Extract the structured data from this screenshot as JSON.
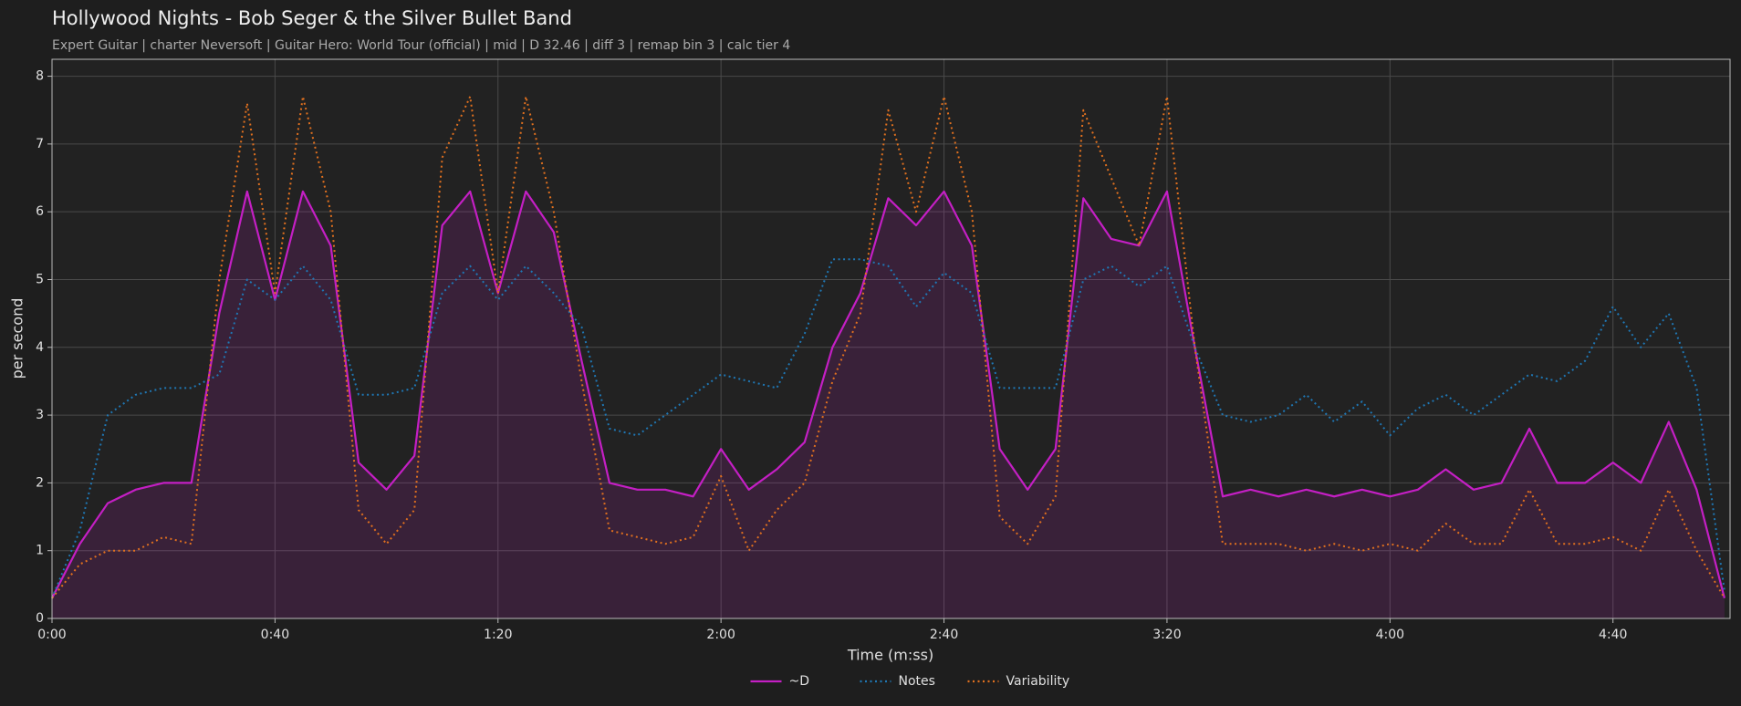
{
  "chart_data": {
    "type": "line",
    "title": "Hollywood Nights - Bob Seger & the Silver Bullet Band",
    "subtitle": "Expert Guitar  |  charter Neversoft  |  Guitar Hero: World Tour (official)  |  mid  |  D 32.46  |  diff 3  |  remap bin 3  |  calc tier 4",
    "xlabel": "Time (m:ss)",
    "ylabel": "per second",
    "x": [
      0,
      5,
      10,
      15,
      20,
      25,
      30,
      35,
      40,
      45,
      50,
      55,
      60,
      65,
      70,
      75,
      80,
      85,
      90,
      95,
      100,
      105,
      110,
      115,
      120,
      125,
      130,
      135,
      140,
      145,
      150,
      155,
      160,
      165,
      170,
      175,
      180,
      185,
      190,
      195,
      200,
      205,
      210,
      215,
      220,
      225,
      230,
      235,
      240,
      245,
      250,
      255,
      260,
      265,
      270,
      275,
      280,
      285,
      290,
      295,
      300
    ],
    "series": [
      {
        "name": "~D",
        "color": "#c41fc4",
        "dash": "solid",
        "fill": true,
        "values": [
          0.3,
          1.1,
          1.7,
          1.9,
          2.0,
          2.0,
          4.5,
          6.3,
          4.7,
          6.3,
          5.5,
          2.3,
          1.9,
          2.4,
          5.8,
          6.3,
          4.8,
          6.3,
          5.7,
          3.8,
          2.0,
          1.9,
          1.9,
          1.8,
          2.5,
          1.9,
          2.2,
          2.6,
          4.0,
          4.8,
          6.2,
          5.8,
          6.3,
          5.5,
          2.5,
          1.9,
          2.5,
          6.2,
          5.6,
          5.5,
          6.3,
          4.0,
          1.8,
          1.9,
          1.8,
          1.9,
          1.8,
          1.9,
          1.8,
          1.9,
          2.2,
          1.9,
          2.0,
          2.8,
          2.0,
          2.0,
          2.3,
          2.0,
          2.9,
          1.9,
          0.3
        ]
      },
      {
        "name": "Notes",
        "color": "#1f77b4",
        "dash": "dotted",
        "fill": false,
        "values": [
          0.3,
          1.3,
          3.0,
          3.3,
          3.4,
          3.4,
          3.6,
          5.0,
          4.7,
          5.2,
          4.7,
          3.3,
          3.3,
          3.4,
          4.8,
          5.2,
          4.7,
          5.2,
          4.8,
          4.3,
          2.8,
          2.7,
          3.0,
          3.3,
          3.6,
          3.5,
          3.4,
          4.2,
          5.3,
          5.3,
          5.2,
          4.6,
          5.1,
          4.8,
          3.4,
          3.4,
          3.4,
          5.0,
          5.2,
          4.9,
          5.2,
          4.0,
          3.0,
          2.9,
          3.0,
          3.3,
          2.9,
          3.2,
          2.7,
          3.1,
          3.3,
          3.0,
          3.3,
          3.6,
          3.5,
          3.8,
          4.6,
          4.0,
          4.5,
          3.4,
          0.4
        ]
      },
      {
        "name": "Variability",
        "color": "#e0701f",
        "dash": "dotted",
        "fill": false,
        "values": [
          0.3,
          0.8,
          1.0,
          1.0,
          1.2,
          1.1,
          5.0,
          7.6,
          4.8,
          7.7,
          6.0,
          1.6,
          1.1,
          1.6,
          6.8,
          7.7,
          4.8,
          7.7,
          6.0,
          3.5,
          1.3,
          1.2,
          1.1,
          1.2,
          2.1,
          1.0,
          1.6,
          2.0,
          3.5,
          4.5,
          7.5,
          6.0,
          7.7,
          6.0,
          1.5,
          1.1,
          1.8,
          7.5,
          6.5,
          5.5,
          7.7,
          4.0,
          1.1,
          1.1,
          1.1,
          1.0,
          1.1,
          1.0,
          1.1,
          1.0,
          1.4,
          1.1,
          1.1,
          1.9,
          1.1,
          1.1,
          1.2,
          1.0,
          1.9,
          1.0,
          0.3
        ]
      }
    ],
    "xlim": [
      0,
      301
    ],
    "ylim": [
      0,
      8.25
    ],
    "xticks": [
      {
        "value": 0,
        "label": "0:00"
      },
      {
        "value": 40,
        "label": "0:40"
      },
      {
        "value": 80,
        "label": "1:20"
      },
      {
        "value": 120,
        "label": "2:00"
      },
      {
        "value": 160,
        "label": "2:40"
      },
      {
        "value": 200,
        "label": "3:20"
      },
      {
        "value": 240,
        "label": "4:00"
      },
      {
        "value": 280,
        "label": "4:40"
      }
    ],
    "yticks": [
      0,
      1,
      2,
      3,
      4,
      5,
      6,
      7,
      8
    ],
    "grid": true,
    "legend": "bottom"
  }
}
